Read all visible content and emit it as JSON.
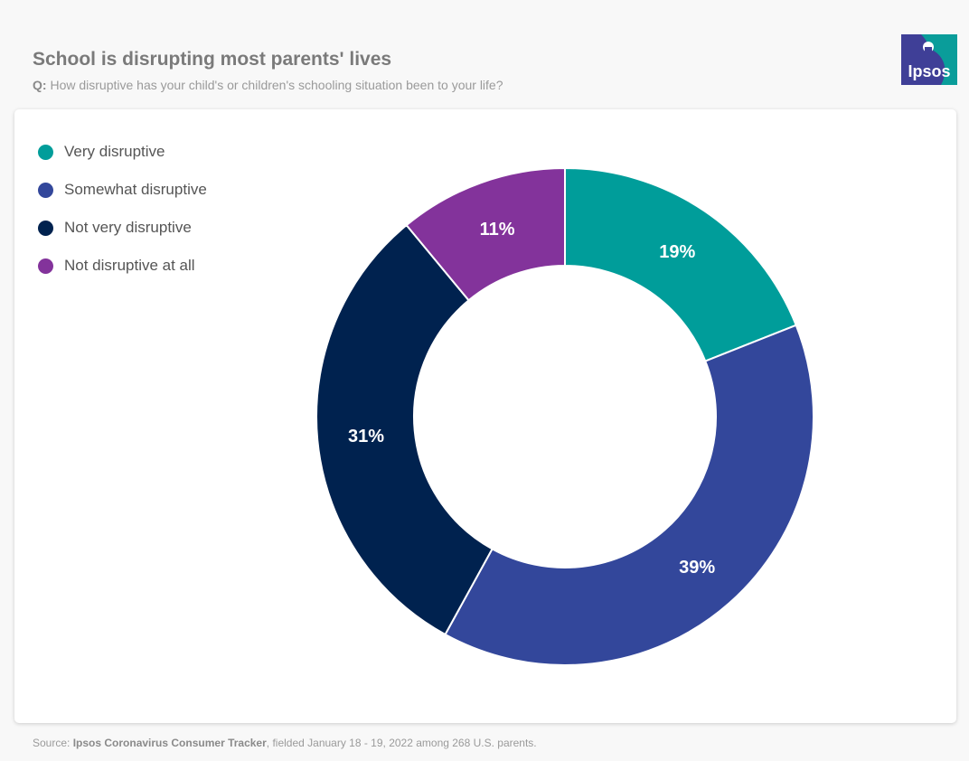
{
  "header": {
    "title": "School is disrupting most parents' lives",
    "question_prefix": "Q:",
    "question": "How disruptive has your child's or children's schooling situation been to your life?"
  },
  "logo": {
    "text": "Ipsos",
    "colors": [
      "#0a9d9a",
      "#3f3f97"
    ]
  },
  "chart_data": {
    "type": "pie",
    "variant": "donut",
    "title": "School is disrupting most parents' lives",
    "categories": [
      "Very disruptive",
      "Somewhat disruptive",
      "Not very disruptive",
      "Not disruptive at all"
    ],
    "values": [
      19,
      39,
      31,
      11
    ],
    "labels": [
      "19%",
      "39%",
      "31%",
      "11%"
    ],
    "colors": [
      "#009d9a",
      "#33479b",
      "#00224f",
      "#83339b"
    ],
    "legend_position": "top-left",
    "start": "12 o'clock, clockwise"
  },
  "footer": {
    "source_prefix": "Source:",
    "source_name": "Ipsos Coronavirus Consumer Tracker",
    "source_suffix": ", fielded January 18 - 19, 2022 among 268 U.S. parents."
  }
}
